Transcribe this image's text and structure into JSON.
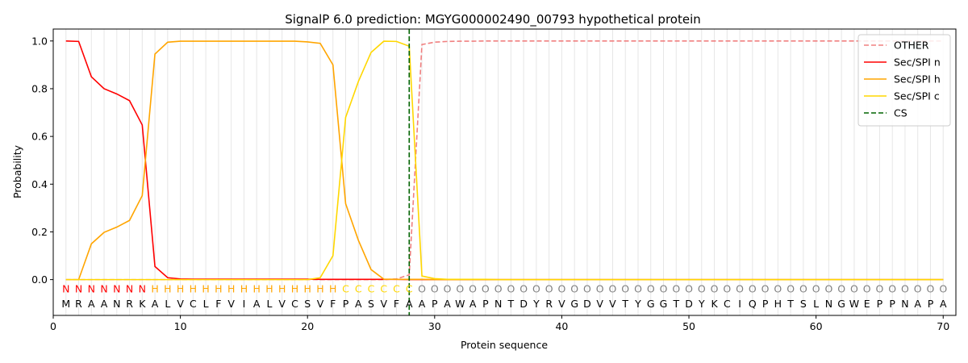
{
  "chart_data": {
    "type": "line",
    "title": "SignalP 6.0 prediction: MGYG000002490_00793 hypothetical protein",
    "xlabel": "Protein sequence",
    "ylabel": "Probability",
    "xlim": [
      0,
      71
    ],
    "ylim": [
      -0.15,
      1.05
    ],
    "xticks": [
      0,
      10,
      20,
      30,
      40,
      50,
      60,
      70
    ],
    "yticks": [
      0.0,
      0.2,
      0.4,
      0.6,
      0.8,
      1.0
    ],
    "grid": "vertical lines at every residue",
    "legend_position": "top-right",
    "x": [
      1,
      2,
      3,
      4,
      5,
      6,
      7,
      8,
      9,
      10,
      11,
      12,
      13,
      14,
      15,
      16,
      17,
      18,
      19,
      20,
      21,
      22,
      23,
      24,
      25,
      26,
      27,
      28,
      29,
      30,
      31,
      32,
      33,
      34,
      35,
      36,
      37,
      38,
      39,
      40,
      41,
      42,
      43,
      44,
      45,
      46,
      47,
      48,
      49,
      50,
      51,
      52,
      53,
      54,
      55,
      56,
      57,
      58,
      59,
      60,
      61,
      62,
      63,
      64,
      65,
      66,
      67,
      68,
      69,
      70
    ],
    "sequence": [
      "M",
      "R",
      "A",
      "A",
      "N",
      "R",
      "K",
      "A",
      "L",
      "V",
      "C",
      "L",
      "F",
      "V",
      "I",
      "A",
      "L",
      "V",
      "C",
      "S",
      "V",
      "F",
      "P",
      "A",
      "S",
      "V",
      "F",
      "A",
      "A",
      "P",
      "A",
      "W",
      "A",
      "P",
      "N",
      "T",
      "D",
      "Y",
      "R",
      "V",
      "G",
      "D",
      "V",
      "V",
      "T",
      "Y",
      "G",
      "G",
      "T",
      "D",
      "Y",
      "K",
      "C",
      "I",
      "Q",
      "P",
      "H",
      "T",
      "S",
      "L",
      "N",
      "G",
      "W",
      "E",
      "P",
      "P",
      "N",
      "A",
      "P",
      "A"
    ],
    "labels": [
      "N",
      "N",
      "N",
      "N",
      "N",
      "N",
      "N",
      "H",
      "H",
      "H",
      "H",
      "H",
      "H",
      "H",
      "H",
      "H",
      "H",
      "H",
      "H",
      "H",
      "H",
      "H",
      "C",
      "C",
      "C",
      "C",
      "C",
      "C",
      "O",
      "O",
      "O",
      "O",
      "O",
      "O",
      "O",
      "O",
      "O",
      "O",
      "O",
      "O",
      "O",
      "O",
      "O",
      "O",
      "O",
      "O",
      "O",
      "O",
      "O",
      "O",
      "O",
      "O",
      "O",
      "O",
      "O",
      "O",
      "O",
      "O",
      "O",
      "O",
      "O",
      "O",
      "O",
      "O",
      "O",
      "O",
      "O",
      "O",
      "O",
      "O"
    ],
    "label_colors": {
      "N": "#ff0000",
      "H": "#ffa500",
      "C": "#ffd700",
      "O": "#808080"
    },
    "series": [
      {
        "name": "OTHER",
        "color": "#f08080",
        "dash": "dashed",
        "values": [
          0,
          0,
          0,
          0,
          0,
          0,
          0,
          0,
          0,
          0,
          0,
          0,
          0,
          0,
          0,
          0,
          0,
          0,
          0,
          0,
          0,
          0,
          0,
          0,
          0,
          0,
          0.003,
          0.02,
          0.985,
          0.995,
          0.998,
          0.999,
          0.999,
          1,
          1,
          1,
          1,
          1,
          1,
          1,
          1,
          1,
          1,
          1,
          1,
          1,
          1,
          1,
          1,
          1,
          1,
          1,
          1,
          1,
          1,
          1,
          1,
          1,
          1,
          1,
          1,
          1,
          1,
          1,
          1,
          1,
          1,
          1,
          1,
          1
        ]
      },
      {
        "name": "Sec/SPI n",
        "color": "#ff0000",
        "dash": "solid",
        "values": [
          1.0,
          0.998,
          0.85,
          0.8,
          0.778,
          0.75,
          0.648,
          0.055,
          0.008,
          0.003,
          0.002,
          0.002,
          0.002,
          0.002,
          0.002,
          0.002,
          0.002,
          0.002,
          0.002,
          0.002,
          0.001,
          0.001,
          0.001,
          0.001,
          0.001,
          0.001,
          0.001,
          0,
          0,
          0,
          0,
          0,
          0,
          0,
          0,
          0,
          0,
          0,
          0,
          0,
          0,
          0,
          0,
          0,
          0,
          0,
          0,
          0,
          0,
          0,
          0,
          0,
          0,
          0,
          0,
          0,
          0,
          0,
          0,
          0,
          0,
          0,
          0,
          0,
          0,
          0,
          0,
          0,
          0,
          0
        ]
      },
      {
        "name": "Sec/SPI h",
        "color": "#ffa500",
        "dash": "solid",
        "values": [
          0,
          0,
          0.15,
          0.198,
          0.22,
          0.248,
          0.352,
          0.945,
          0.995,
          0.999,
          0.999,
          0.999,
          0.999,
          0.999,
          0.999,
          0.999,
          0.999,
          0.999,
          0.999,
          0.996,
          0.99,
          0.9,
          0.318,
          0.165,
          0.042,
          0.002,
          0.001,
          0.001,
          0.001,
          0,
          0,
          0,
          0,
          0,
          0,
          0,
          0,
          0,
          0,
          0,
          0,
          0,
          0,
          0,
          0,
          0,
          0,
          0,
          0,
          0,
          0,
          0,
          0,
          0,
          0,
          0,
          0,
          0,
          0,
          0,
          0,
          0,
          0,
          0,
          0,
          0,
          0,
          0,
          0,
          0
        ]
      },
      {
        "name": "Sec/SPI c",
        "color": "#ffd700",
        "dash": "solid",
        "values": [
          0,
          0,
          0,
          0,
          0,
          0,
          0,
          0,
          0,
          0,
          0,
          0,
          0,
          0,
          0,
          0,
          0,
          0,
          0,
          0,
          0.008,
          0.1,
          0.68,
          0.83,
          0.952,
          0.999,
          0.998,
          0.978,
          0.015,
          0.004,
          0.001,
          0.001,
          0.001,
          0.001,
          0,
          0,
          0,
          0,
          0,
          0,
          0,
          0,
          0,
          0,
          0,
          0,
          0,
          0,
          0,
          0,
          0,
          0,
          0,
          0,
          0,
          0,
          0,
          0,
          0,
          0,
          0,
          0,
          0,
          0,
          0,
          0,
          0,
          0,
          0,
          0
        ]
      }
    ],
    "cs": {
      "name": "CS",
      "x": 28,
      "color": "#006400",
      "dash": "dashed"
    }
  }
}
